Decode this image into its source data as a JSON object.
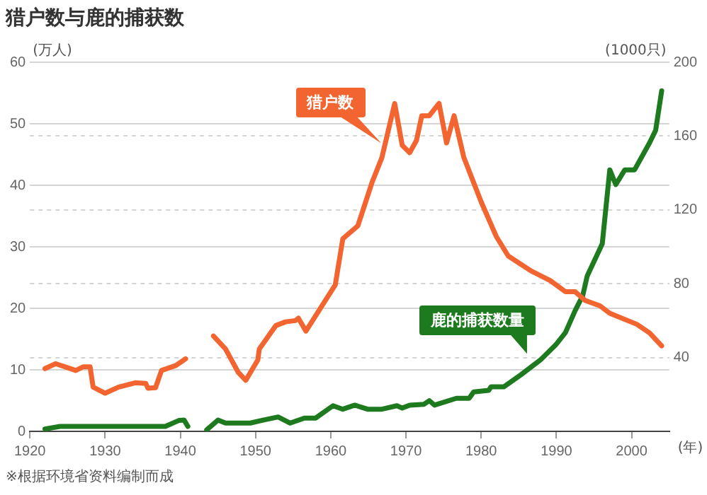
{
  "chart_data": {
    "type": "line",
    "title": "猎户数与鹿的捕获数",
    "xlabel": "(年)",
    "ylabel": "(万人)",
    "y2label": "(1000只)",
    "annotations": [
      "※根据环境省资料编制而成"
    ],
    "xlim": [
      1920,
      2005
    ],
    "xticks": [
      1920,
      1930,
      1940,
      1950,
      1960,
      1970,
      1980,
      1990,
      2000
    ],
    "ylim": [
      0,
      60
    ],
    "yticks": [
      0,
      10,
      20,
      30,
      40,
      50,
      60
    ],
    "y2lim": [
      0,
      200
    ],
    "y2ticks": [
      40,
      80,
      120,
      160,
      200
    ],
    "grid": "y",
    "legend": false,
    "marker": "none",
    "line_style": "solid",
    "series": [
      {
        "name": "猎户数",
        "color": "#f26430",
        "x": [
          1922,
          1923.4,
          1926.1,
          1927.1,
          1928,
          1928.4,
          1930,
          1931.8,
          1934,
          1935.4,
          1935.7,
          1936.7,
          1937.5,
          1939.4,
          1940.7,
          1942.5,
          1944.4,
          1946,
          1947.7,
          1948.7,
          1950.3,
          1950.5,
          1952.7,
          1954,
          1955.3,
          1955.7,
          1956.7,
          1960.6,
          1961.6,
          1963.6,
          1965.5,
          1966.8,
          1968.5,
          1969.5,
          1970.5,
          1971.4,
          1972.1,
          1973.1,
          1974.4,
          1975.4,
          1976.4,
          1977.7,
          1980,
          1982,
          1983.6,
          1986.6,
          1989.2,
          1991.2,
          1992.5,
          1993.8,
          1995.8,
          1997.1,
          2000.7,
          2002.4,
          2004
        ],
        "values": [
          10.2,
          11,
          9.9,
          10.5,
          10.5,
          7.2,
          6.2,
          7.2,
          7.9,
          7.8,
          7,
          7.1,
          9.9,
          10.7,
          11.8,
          null,
          15.5,
          13.4,
          9.6,
          8.3,
          11.6,
          13.4,
          17.2,
          17.8,
          18,
          18.4,
          16.3,
          23.8,
          31.3,
          33.4,
          40.5,
          44.5,
          53.3,
          46.5,
          45.3,
          47.3,
          51.3,
          51.3,
          53.3,
          46.9,
          51.3,
          44.5,
          37.3,
          31.7,
          28.5,
          26.1,
          24.5,
          22.7,
          22.7,
          21.3,
          20.4,
          19.2,
          17.4,
          16,
          13.9
        ]
      },
      {
        "name": "鹿的捕获数量",
        "color": "#1e7a1e",
        "axis": "y2",
        "x": [
          1922,
          1924,
          1938,
          1939.8,
          1940.5,
          1941,
          1942.3,
          1943.5,
          1945,
          1946,
          1949.3,
          1951,
          1953,
          1954.6,
          1956.5,
          1958,
          1960.3,
          1961.6,
          1963.2,
          1964.9,
          1966.8,
          1968.8,
          1969.5,
          1970.5,
          1972.4,
          1973.1,
          1973.8,
          1976.7,
          1978.4,
          1979,
          1981,
          1981.3,
          1983,
          1985.3,
          1987.9,
          1989.9,
          1991.2,
          1992.5,
          1993.5,
          1994.1,
          1996.1,
          1997.1,
          1997.9,
          1999.1,
          2000.4,
          2002.4,
          2003.2,
          2004
        ],
        "values": [
          1.3,
          2.7,
          2.7,
          5.9,
          6.1,
          2.7,
          null,
          0.8,
          6.1,
          4.5,
          4.5,
          6.1,
          7.8,
          4.5,
          7.2,
          7.2,
          13.9,
          12,
          14.2,
          12,
          12,
          13.9,
          12.6,
          14.2,
          14.7,
          16.6,
          14.2,
          17.9,
          17.9,
          21.4,
          22.2,
          24.1,
          24.1,
          30.7,
          38.8,
          46.8,
          53.5,
          65.5,
          73.5,
          84.2,
          101.6,
          141.7,
          133.7,
          141.7,
          141.7,
          156.4,
          163.1,
          184.5
        ]
      }
    ]
  }
}
